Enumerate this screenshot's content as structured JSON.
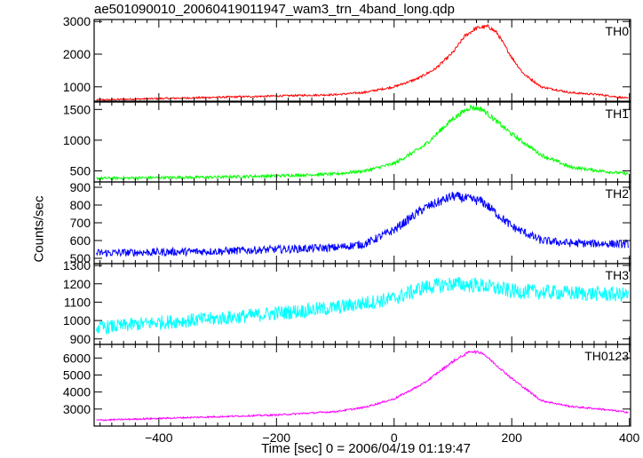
{
  "plot_title": "ae501090010_20060419011947_wam3_trn_4band_long.qdp",
  "ylabel": "Counts/sec",
  "xlabel": "Time [sec] 0 = 2006/04/19 01:19:47",
  "chart_data": {
    "type": "line",
    "title": "ae501090010_20060419011947_wam3_trn_4band_long.qdp",
    "xlabel": "Time [sec] 0 = 2006/04/19 01:19:47",
    "ylabel": "Counts/sec",
    "xlim": [
      -510,
      402
    ],
    "x_ticks": [
      -400,
      -200,
      0,
      200,
      400
    ],
    "x_tick_labels": [
      "−400",
      "−200",
      "0",
      "200",
      "400"
    ],
    "grid": false,
    "panels": [
      {
        "name": "TH0",
        "color": "#ff0000",
        "ylim": [
          560,
          3060
        ],
        "y_ticks": [
          1000,
          2000,
          3000
        ],
        "y_tick_labels": [
          "1000",
          "2000",
          "3000"
        ],
        "noise": 25,
        "x": [
          -500,
          -400,
          -300,
          -200,
          -100,
          -50,
          0,
          40,
          70,
          100,
          120,
          140,
          160,
          175,
          200,
          220,
          250,
          300,
          350,
          400
        ],
        "values": [
          600,
          640,
          680,
          720,
          760,
          830,
          1000,
          1250,
          1550,
          2050,
          2550,
          2800,
          2850,
          2650,
          1900,
          1400,
          1000,
          820,
          760,
          640
        ]
      },
      {
        "name": "TH1",
        "color": "#00ff00",
        "ylim": [
          320,
          1620
        ],
        "y_ticks": [
          500,
          1000,
          1500
        ],
        "y_tick_labels": [
          "500",
          "1000",
          "1500"
        ],
        "noise": 22,
        "x": [
          -500,
          -400,
          -300,
          -200,
          -100,
          -50,
          0,
          50,
          100,
          130,
          150,
          200,
          250,
          300,
          350,
          400
        ],
        "values": [
          380,
          390,
          400,
          420,
          450,
          500,
          620,
          900,
          1350,
          1540,
          1500,
          1100,
          760,
          560,
          500,
          450
        ]
      },
      {
        "name": "TH2",
        "color": "#0000ff",
        "ylim": [
          470,
          930
        ],
        "y_ticks": [
          500,
          600,
          700,
          800,
          900
        ],
        "y_tick_labels": [
          "500",
          "600",
          "700",
          "800",
          "900"
        ],
        "noise": 22,
        "x": [
          -500,
          -400,
          -300,
          -200,
          -100,
          -50,
          0,
          50,
          100,
          150,
          200,
          250,
          300,
          400
        ],
        "values": [
          530,
          535,
          540,
          550,
          560,
          580,
          660,
          780,
          850,
          820,
          680,
          600,
          585,
          580
        ]
      },
      {
        "name": "TH3",
        "color": "#00ffff",
        "ylim": [
          870,
          1310
        ],
        "y_ticks": [
          900,
          1000,
          1100,
          1200,
          1300
        ],
        "y_tick_labels": [
          "900",
          "1000",
          "1100",
          "1200",
          "1300"
        ],
        "noise": 38,
        "x": [
          -500,
          -400,
          -300,
          -200,
          -100,
          0,
          50,
          100,
          150,
          200,
          300,
          400
        ],
        "values": [
          960,
          990,
          1010,
          1040,
          1070,
          1120,
          1180,
          1200,
          1190,
          1160,
          1150,
          1140
        ]
      },
      {
        "name": "TH0123",
        "color": "#ff00ff",
        "ylim": [
          2000,
          6800
        ],
        "y_ticks": [
          3000,
          4000,
          5000,
          6000
        ],
        "y_tick_labels": [
          "3000",
          "4000",
          "5000",
          "6000"
        ],
        "noise": 45,
        "x": [
          -500,
          -400,
          -300,
          -200,
          -100,
          -50,
          0,
          50,
          100,
          130,
          150,
          200,
          250,
          300,
          350,
          400
        ],
        "values": [
          2350,
          2450,
          2550,
          2650,
          2850,
          3100,
          3600,
          4500,
          5800,
          6400,
          6300,
          4800,
          3500,
          3150,
          3000,
          2800
        ]
      }
    ]
  }
}
